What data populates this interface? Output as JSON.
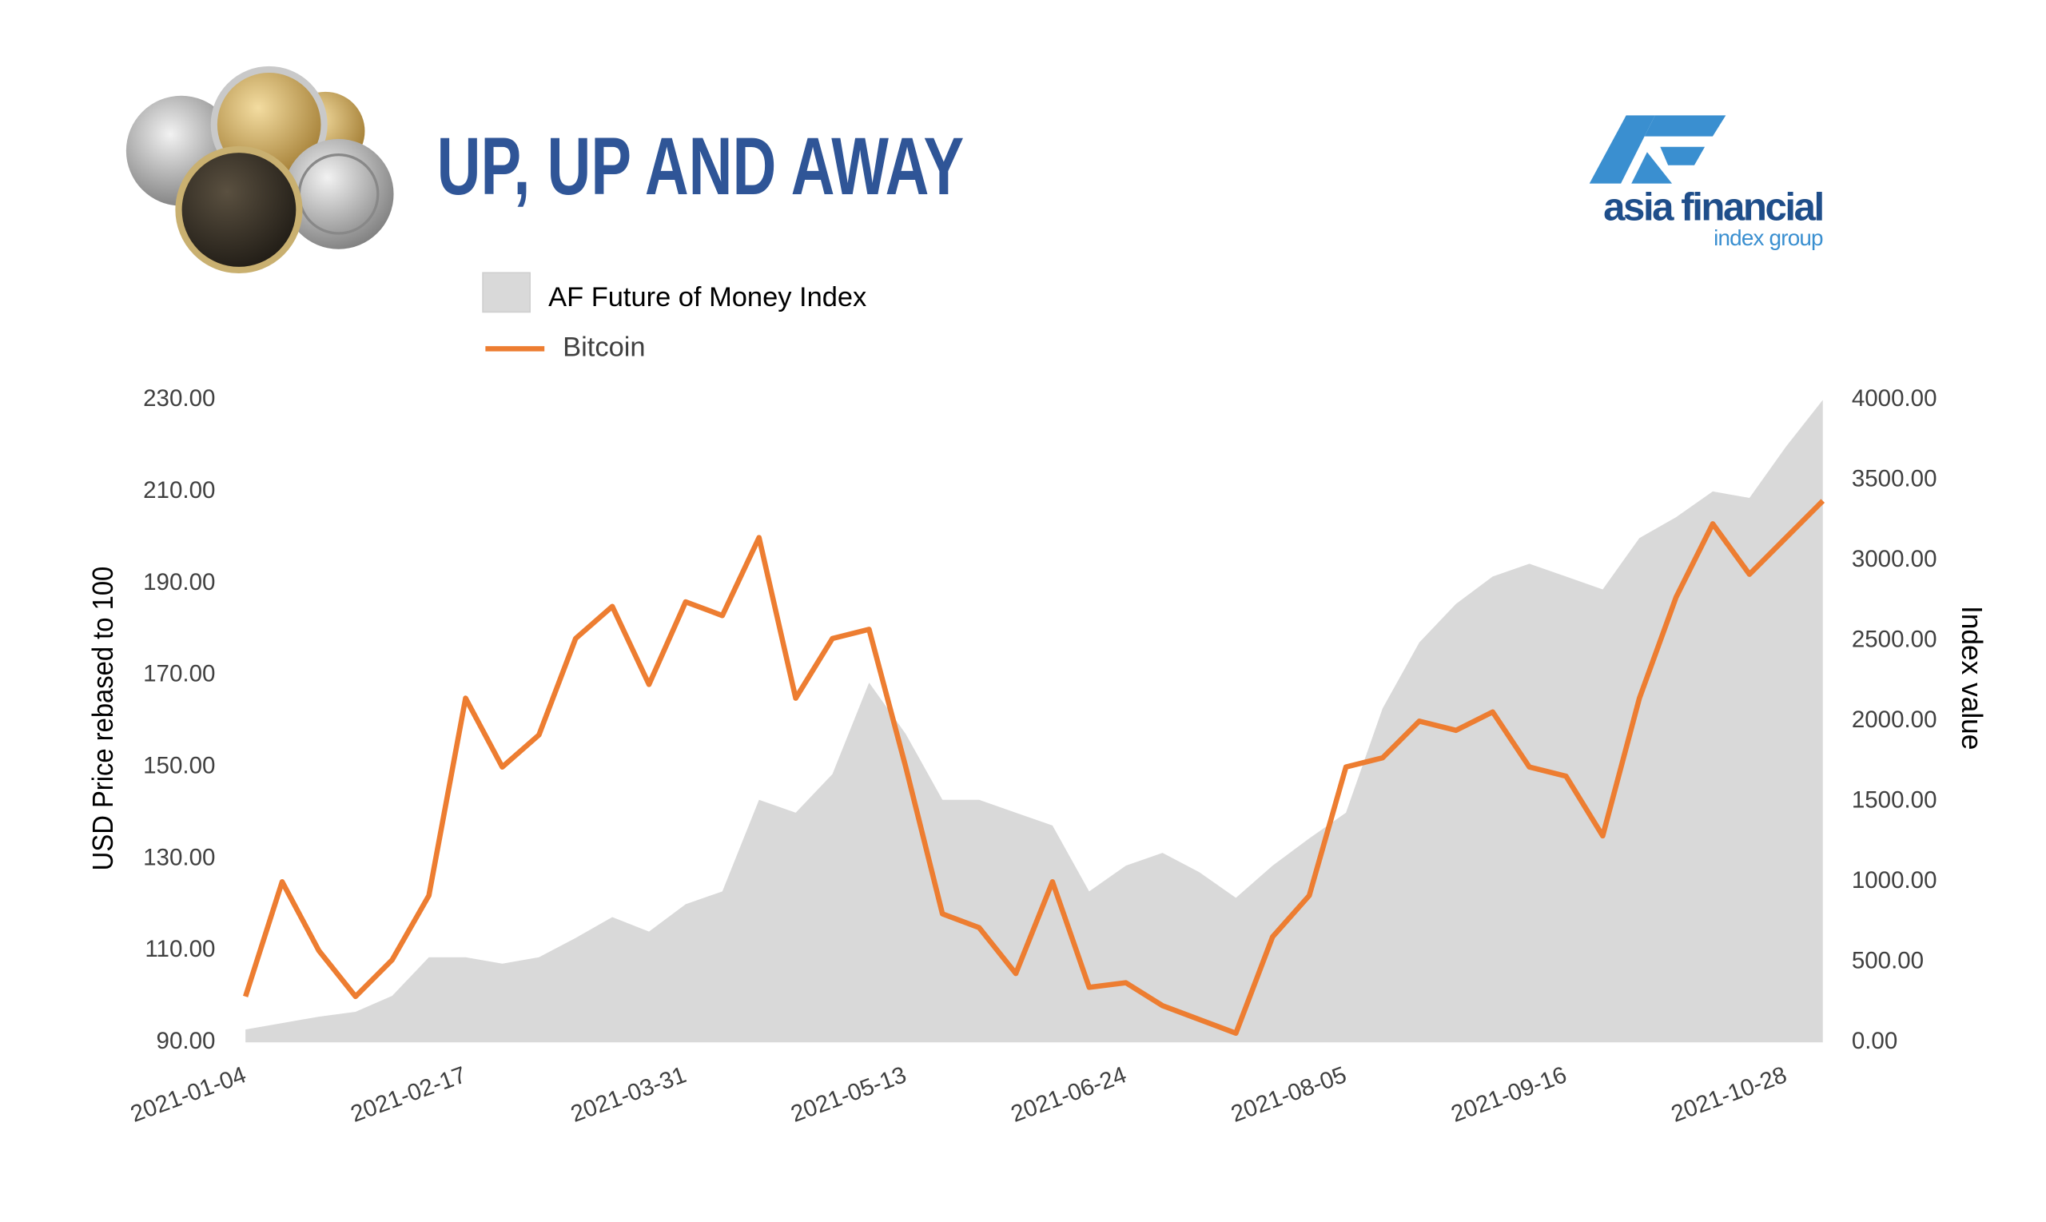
{
  "chart_data": {
    "type": "line",
    "title": "UP, UP AND AWAY",
    "y_label": "USD Price rebased to 100",
    "y2_label": "Index value",
    "categories": [
      "2021-01-04",
      null,
      null,
      null,
      null,
      null,
      "2021-02-17",
      null,
      null,
      null,
      null,
      null,
      "2021-03-31",
      null,
      null,
      null,
      null,
      null,
      "2021-05-13",
      null,
      null,
      null,
      null,
      null,
      "2021-06-24",
      null,
      null,
      null,
      null,
      null,
      "2021-08-05",
      null,
      null,
      null,
      null,
      null,
      "2021-09-16",
      null,
      null,
      null,
      null,
      null,
      "2021-10-28",
      null
    ],
    "series": [
      {
        "name": "AF Future of Money Index",
        "color": "#d9d9d9",
        "kind": "area",
        "axis": "y2",
        "values": [
          80,
          120,
          160,
          190,
          290,
          530,
          530,
          490,
          530,
          650,
          780,
          690,
          860,
          940,
          1510,
          1430,
          1670,
          2240,
          1920,
          1510,
          1510,
          1430,
          1350,
          940,
          1100,
          1180,
          1060,
          900,
          1100,
          1270,
          1430,
          2080,
          2490,
          2730,
          2900,
          2980,
          2900,
          2820,
          3140,
          3270,
          3430,
          3390,
          3710,
          4000
        ]
      },
      {
        "name": "Bitcoin",
        "color": "#ed7d31",
        "kind": "line",
        "values": [
          100,
          125,
          110,
          100,
          108,
          122,
          165,
          150,
          157,
          178,
          185,
          168,
          186,
          183,
          200,
          165,
          178,
          180,
          150,
          118,
          115,
          105,
          125,
          102,
          103,
          98,
          95,
          92,
          113,
          122,
          150,
          152,
          160,
          158,
          162,
          150,
          148,
          135,
          165,
          187,
          203,
          192,
          200,
          208
        ]
      }
    ],
    "ylim": [
      90,
      230
    ],
    "yticks": [
      {
        "value": 90,
        "label": "90.00"
      },
      {
        "value": 110,
        "label": "110.00"
      },
      {
        "value": 130,
        "label": "130.00"
      },
      {
        "value": 150,
        "label": "150.00"
      },
      {
        "value": 170,
        "label": "170.00"
      },
      {
        "value": 190,
        "label": "190.00"
      },
      {
        "value": 210,
        "label": "210.00"
      },
      {
        "value": 230,
        "label": "230.00"
      }
    ],
    "y2lim": [
      0,
      4000
    ],
    "y2ticks": [
      {
        "value": 0,
        "label": "0.00"
      },
      {
        "value": 500,
        "label": "500.00"
      },
      {
        "value": 1000,
        "label": "1000.00"
      },
      {
        "value": 1500,
        "label": "1500.00"
      },
      {
        "value": 2000,
        "label": "2000.00"
      },
      {
        "value": 2500,
        "label": "2500.00"
      },
      {
        "value": 3000,
        "label": "3000.00"
      },
      {
        "value": 3500,
        "label": "3500.00"
      },
      {
        "value": 4000,
        "label": "4000.00"
      }
    ],
    "grid": false
  },
  "logo": {
    "name": "asia financial",
    "tagline": "index group"
  }
}
